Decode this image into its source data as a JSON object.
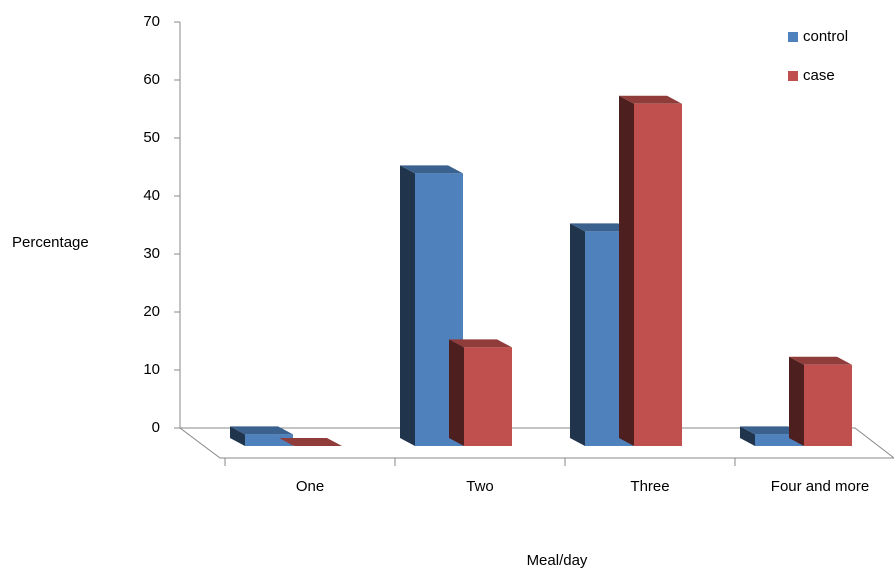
{
  "chart_data": {
    "type": "bar3d",
    "x_label": "Meal/day",
    "y_label": "Percentage",
    "categories": [
      "One",
      "Two",
      "Three",
      "Four and more"
    ],
    "series": [
      {
        "name": "control",
        "color": "#4f81bd",
        "values": [
          2,
          47,
          37,
          2
        ]
      },
      {
        "name": "case",
        "color": "#c0504d",
        "values": [
          0,
          17,
          59,
          14
        ]
      }
    ],
    "ylim": [
      0,
      70
    ],
    "yticks": [
      0,
      10,
      20,
      30,
      40,
      50,
      60,
      70
    ],
    "legend": "upper right"
  }
}
